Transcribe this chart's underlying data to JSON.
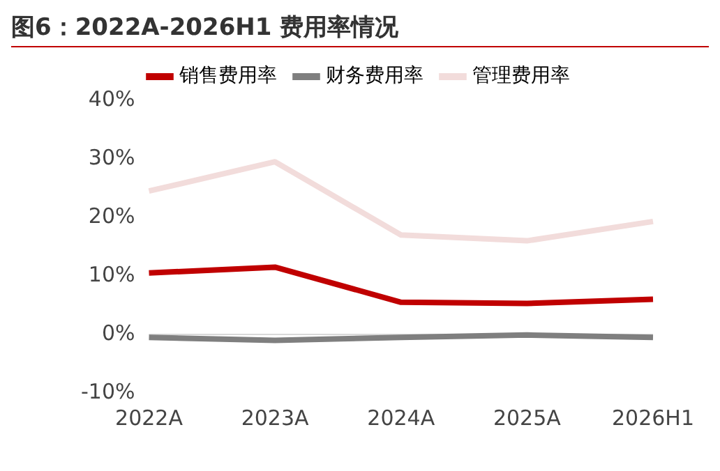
{
  "chart_data": {
    "type": "line",
    "title": "图6：2022A-2026H1 费用率情况",
    "categories": [
      "2022A",
      "2023A",
      "2024A",
      "2025A",
      "2026H1"
    ],
    "series": [
      {
        "name": "销售费用率",
        "color": "#c00000",
        "values": [
          10.5,
          11.5,
          5.5,
          5.3,
          6.0
        ]
      },
      {
        "name": "财务费用率",
        "color": "#7f7f7f",
        "values": [
          -0.5,
          -1.0,
          -0.5,
          -0.1,
          -0.5
        ]
      },
      {
        "name": "管理费用率",
        "color": "#f2dcdb",
        "values": [
          24.5,
          29.5,
          17.0,
          16.0,
          19.3
        ]
      }
    ],
    "ylim": [
      -10,
      40
    ],
    "yticks": [
      {
        "value": -10,
        "label": "-10%"
      },
      {
        "value": 0,
        "label": "0%"
      },
      {
        "value": 10,
        "label": "10%"
      },
      {
        "value": 20,
        "label": "20%"
      },
      {
        "value": 30,
        "label": "30%"
      },
      {
        "value": 40,
        "label": "40%"
      }
    ],
    "ref_lines": [
      {
        "axis": "y",
        "value": 0,
        "color": "#d9d9d9"
      }
    ],
    "grid": false,
    "legend": "top",
    "marker": "none",
    "line_style": "solid"
  }
}
